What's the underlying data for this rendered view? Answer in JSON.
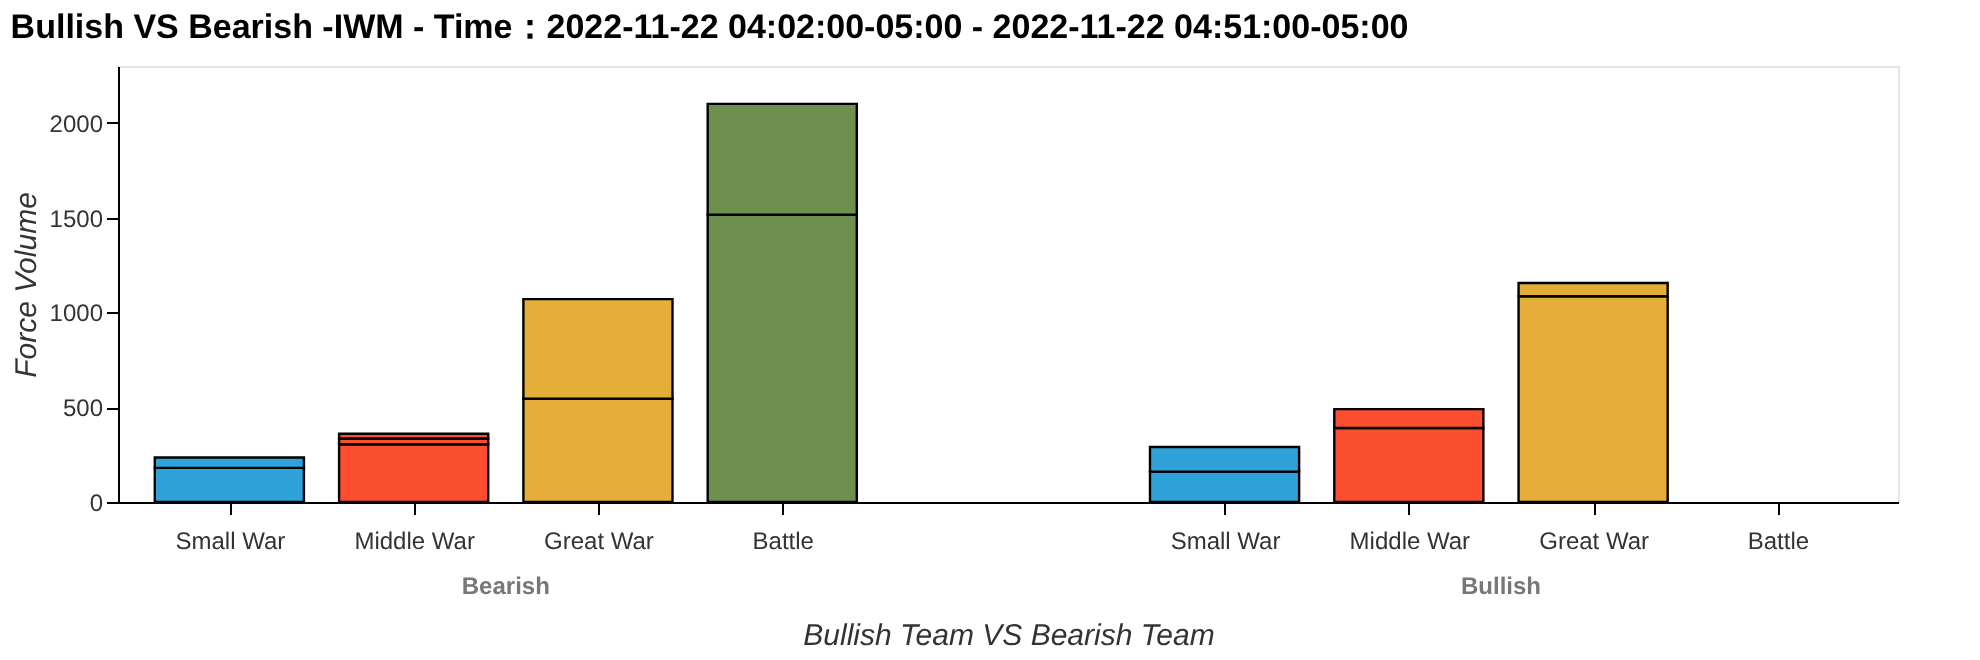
{
  "chart_data": {
    "type": "bar",
    "title": "Bullish VS Bearish -IWM - Time：2022-11-22 04:02:00-05:00 - 2022-11-22 04:51:00-05:00",
    "xlabel": "Bullish Team VS Bearish Team",
    "ylabel": "Force Volume",
    "categories": [
      "Small War",
      "Middle War",
      "Great War",
      "Battle",
      "Small War",
      "Middle War",
      "Great War",
      "Battle"
    ],
    "annotations": [
      "Bearish",
      "Bullish"
    ],
    "stacked": true,
    "series": [
      {
        "values": [
          180,
          305,
          545,
          1515,
          160,
          390,
          1085,
          null
        ],
        "colors": [
          "#30a2da",
          "#fc4f30",
          "#e5ae38",
          "#6d904f",
          "#30a2da",
          "#fc4f30",
          "#e5ae38",
          null
        ]
      },
      {
        "values": [
          55,
          30,
          525,
          585,
          130,
          100,
          70,
          null
        ],
        "colors": [
          "#30a2da",
          "#fc4f30",
          "#e5ae38",
          "#6d904f",
          "#30a2da",
          "#fc4f30",
          "#e5ae38",
          null
        ]
      },
      {
        "values": [
          null,
          25,
          null,
          null,
          null,
          null,
          null,
          null
        ],
        "colors": [
          null,
          "#fc4f30",
          null,
          null,
          null,
          null,
          null,
          null
        ]
      }
    ],
    "ylim": [
      0,
      2300
    ],
    "yticks": [
      0,
      500,
      1000,
      1500,
      2000
    ],
    "grid": false
  }
}
